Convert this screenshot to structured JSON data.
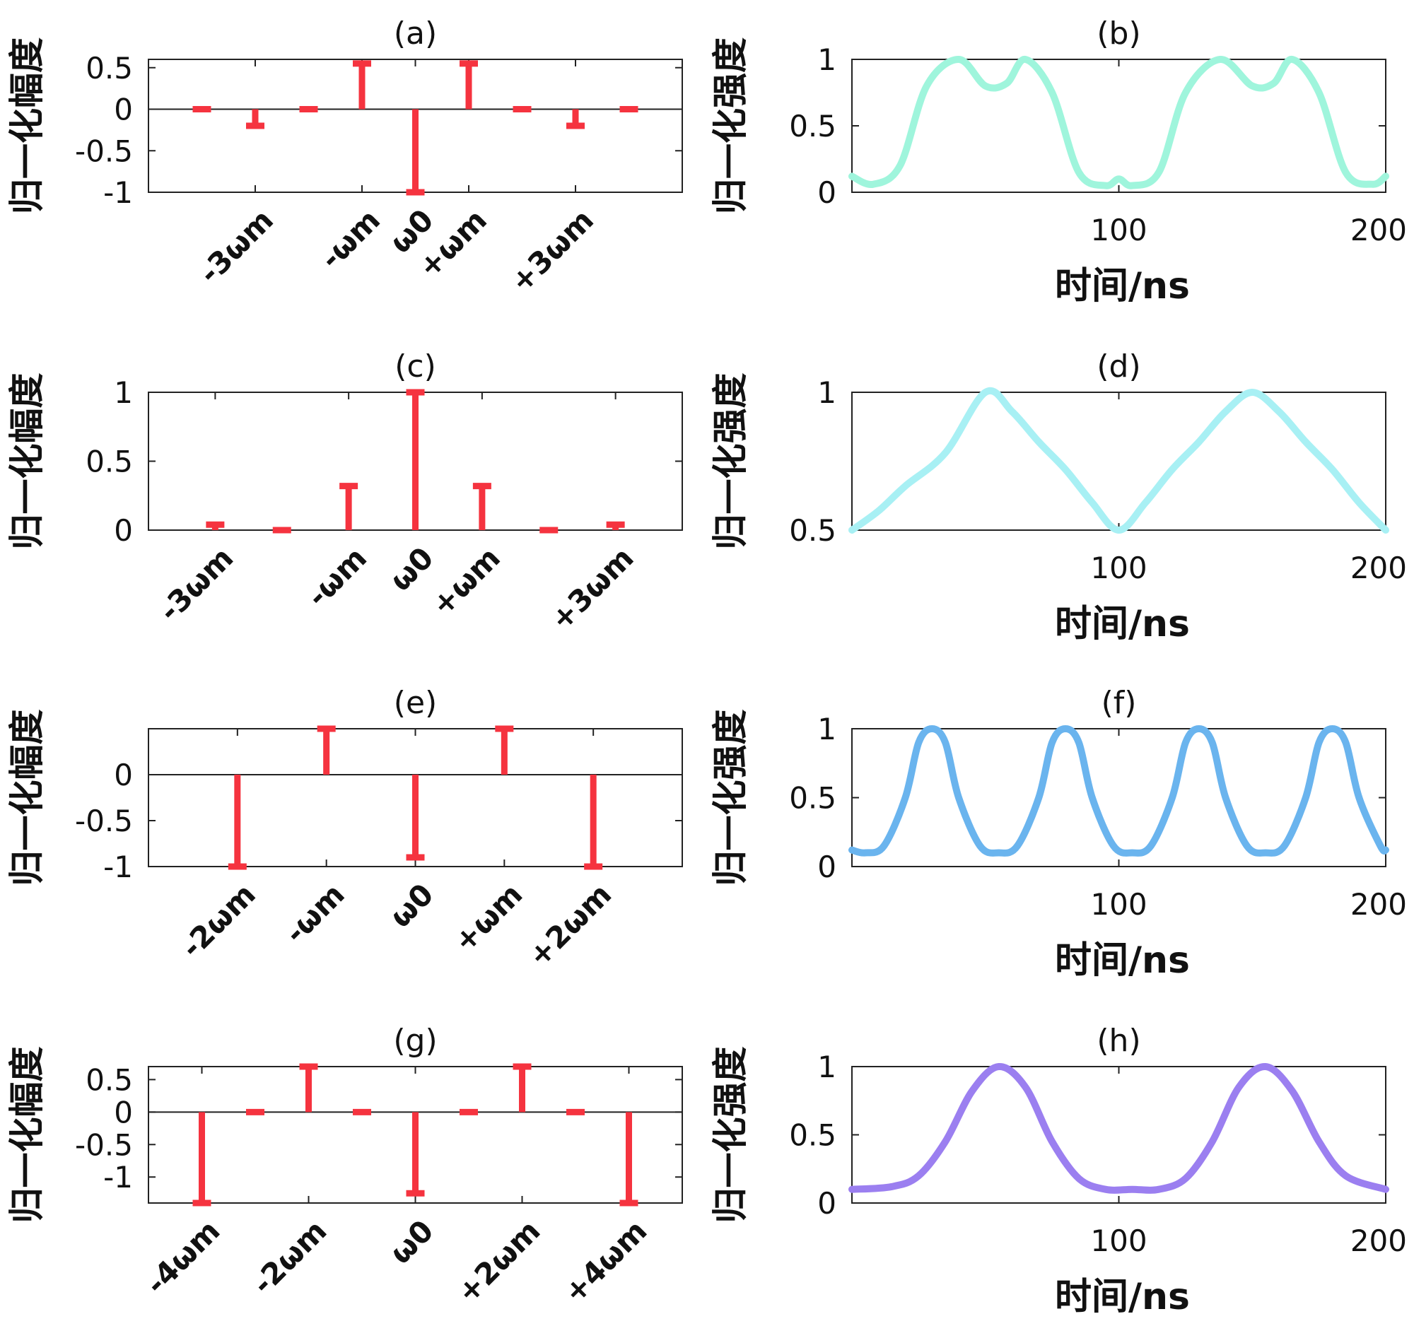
{
  "chart_data": [
    {
      "id": "a",
      "type": "stem",
      "title": "(a)",
      "ylabel": "归一化幅度",
      "xlabel": "",
      "ylim": [
        -1,
        0.6
      ],
      "xlim": [
        0,
        10
      ],
      "yticks": [
        0.5,
        0,
        -0.5,
        -1
      ],
      "ytick_labels": [
        "0.5",
        "0",
        "-0.5",
        "-1"
      ],
      "points": [
        {
          "x": 1,
          "y": 0.0
        },
        {
          "x": 2,
          "y": -0.2
        },
        {
          "x": 3,
          "y": 0.0
        },
        {
          "x": 4,
          "y": 0.55
        },
        {
          "x": 5,
          "y": -1.0
        },
        {
          "x": 6,
          "y": 0.55
        },
        {
          "x": 7,
          "y": 0.0
        },
        {
          "x": 8,
          "y": -0.2
        },
        {
          "x": 9,
          "y": 0.0
        }
      ],
      "xtick_marks": [
        2,
        4,
        5,
        6,
        8
      ],
      "category_labels": [
        {
          "x": 2,
          "label": "-3ωm"
        },
        {
          "x": 4,
          "label": "-ωm"
        },
        {
          "x": 5,
          "label": "ω0"
        },
        {
          "x": 6,
          "label": "+ωm"
        },
        {
          "x": 8,
          "label": "+3ωm"
        }
      ]
    },
    {
      "id": "b",
      "type": "line",
      "title": "(b)",
      "ylabel": "归一化强度",
      "xlabel": "时间/ns",
      "xlim": [
        0,
        200
      ],
      "ylim": [
        0,
        1
      ],
      "yticks": [
        0,
        0.5,
        1
      ],
      "ytick_labels": [
        "0",
        "0.5",
        "1"
      ],
      "xticks": [
        100,
        200
      ],
      "xtick_labels": [
        "100",
        "200"
      ],
      "color": "#9ff5dc",
      "series": [
        {
          "name": "intensity",
          "x": [
            0,
            8,
            18,
            28,
            40,
            50,
            58,
            65,
            75,
            85,
            95,
            100,
            105,
            115,
            125,
            138,
            150,
            158,
            165,
            175,
            185,
            195,
            200
          ],
          "y": [
            0.12,
            0.06,
            0.2,
            0.8,
            1.0,
            0.8,
            0.82,
            1.0,
            0.75,
            0.15,
            0.05,
            0.1,
            0.05,
            0.15,
            0.75,
            1.0,
            0.8,
            0.82,
            1.0,
            0.75,
            0.15,
            0.06,
            0.12
          ]
        }
      ]
    },
    {
      "id": "c",
      "type": "stem",
      "title": "(c)",
      "ylabel": "归一化幅度",
      "xlabel": "",
      "ylim": [
        0,
        1
      ],
      "xlim": [
        0,
        8
      ],
      "yticks": [
        1,
        0.5,
        0
      ],
      "ytick_labels": [
        "1",
        "0.5",
        "0"
      ],
      "points": [
        {
          "x": 1,
          "y": 0.04
        },
        {
          "x": 2,
          "y": 0.0
        },
        {
          "x": 3,
          "y": 0.32
        },
        {
          "x": 4,
          "y": 1.0
        },
        {
          "x": 5,
          "y": 0.32
        },
        {
          "x": 6,
          "y": 0.0
        },
        {
          "x": 7,
          "y": 0.04
        }
      ],
      "xtick_marks": [
        1,
        3,
        4,
        5,
        7
      ],
      "category_labels": [
        {
          "x": 1,
          "label": "-3ωm"
        },
        {
          "x": 3,
          "label": "-ωm"
        },
        {
          "x": 4,
          "label": "ω0"
        },
        {
          "x": 5,
          "label": "+ωm"
        },
        {
          "x": 7,
          "label": "+3ωm"
        }
      ]
    },
    {
      "id": "d",
      "type": "line",
      "title": "(d)",
      "ylabel": "归一化强度",
      "xlabel": "时间/ns",
      "xlim": [
        0,
        200
      ],
      "ylim": [
        0.5,
        1
      ],
      "yticks": [
        0.5,
        1
      ],
      "ytick_labels": [
        "0.5",
        "1"
      ],
      "xticks": [
        100,
        200
      ],
      "xtick_labels": [
        "100",
        "200"
      ],
      "color": "#a8f0f4",
      "series": [
        {
          "name": "intensity",
          "x": [
            0,
            10,
            20,
            35,
            50,
            60,
            70,
            80,
            90,
            100,
            110,
            120,
            130,
            140,
            150,
            160,
            170,
            180,
            190,
            200
          ],
          "y": [
            0.5,
            0.57,
            0.66,
            0.78,
            1.0,
            0.93,
            0.82,
            0.72,
            0.6,
            0.5,
            0.6,
            0.72,
            0.82,
            0.93,
            1.0,
            0.93,
            0.82,
            0.72,
            0.6,
            0.5
          ]
        }
      ]
    },
    {
      "id": "e",
      "type": "stem",
      "title": "(e)",
      "ylabel": "归一化幅度",
      "xlabel": "",
      "ylim": [
        -1,
        0.5
      ],
      "xlim": [
        0,
        6
      ],
      "yticks": [
        0,
        -0.5,
        -1
      ],
      "ytick_labels": [
        "0",
        "-0.5",
        "-1"
      ],
      "points": [
        {
          "x": 1,
          "y": -1.0
        },
        {
          "x": 2,
          "y": 0.5
        },
        {
          "x": 3,
          "y": -0.9
        },
        {
          "x": 4,
          "y": 0.5
        },
        {
          "x": 5,
          "y": -1.0
        }
      ],
      "xtick_marks": [
        1,
        2,
        3,
        4,
        5
      ],
      "category_labels": [
        {
          "x": 1,
          "label": "-2ωm"
        },
        {
          "x": 2,
          "label": "-ωm"
        },
        {
          "x": 3,
          "label": "ω0"
        },
        {
          "x": 4,
          "label": "+ωm"
        },
        {
          "x": 5,
          "label": "+2ωm"
        }
      ]
    },
    {
      "id": "f",
      "type": "line",
      "title": "(f)",
      "ylabel": "归一化强度",
      "xlabel": "时间/ns",
      "xlim": [
        0,
        200
      ],
      "ylim": [
        0,
        1
      ],
      "yticks": [
        0,
        0.5,
        1
      ],
      "ytick_labels": [
        "0",
        "0.5",
        "1"
      ],
      "xticks": [
        100,
        200
      ],
      "xtick_labels": [
        "100",
        "200"
      ],
      "color": "#6ab4ee",
      "series": [
        {
          "name": "intensity",
          "x": [
            0,
            5,
            12,
            20,
            25,
            30,
            35,
            40,
            48,
            55,
            62,
            70,
            75,
            80,
            85,
            90,
            98,
            105,
            112,
            120,
            125,
            130,
            135,
            140,
            148,
            155,
            162,
            170,
            175,
            180,
            185,
            190,
            198,
            200
          ],
          "y": [
            0.12,
            0.1,
            0.15,
            0.5,
            0.9,
            1.0,
            0.9,
            0.5,
            0.15,
            0.1,
            0.15,
            0.5,
            0.9,
            1.0,
            0.9,
            0.5,
            0.15,
            0.1,
            0.15,
            0.5,
            0.9,
            1.0,
            0.9,
            0.5,
            0.15,
            0.1,
            0.15,
            0.5,
            0.9,
            1.0,
            0.9,
            0.5,
            0.15,
            0.12
          ]
        }
      ]
    },
    {
      "id": "g",
      "type": "stem",
      "title": "(g)",
      "ylabel": "归一化幅度",
      "xlabel": "",
      "ylim": [
        -1.4,
        0.7
      ],
      "xlim": [
        0,
        10
      ],
      "yticks": [
        0.5,
        0,
        -0.5,
        -1
      ],
      "ytick_labels": [
        "0.5",
        "0",
        "-0.5",
        "-1"
      ],
      "points": [
        {
          "x": 1,
          "y": -1.4
        },
        {
          "x": 2,
          "y": 0.0
        },
        {
          "x": 3,
          "y": 0.7
        },
        {
          "x": 4,
          "y": 0.0
        },
        {
          "x": 5,
          "y": -1.25
        },
        {
          "x": 6,
          "y": 0.0
        },
        {
          "x": 7,
          "y": 0.7
        },
        {
          "x": 8,
          "y": 0.0
        },
        {
          "x": 9,
          "y": -1.4
        }
      ],
      "xtick_marks": [
        1,
        3,
        5,
        7,
        9
      ],
      "category_labels": [
        {
          "x": 1,
          "label": "-4ωm"
        },
        {
          "x": 3,
          "label": "-2ωm"
        },
        {
          "x": 5,
          "label": "ω0"
        },
        {
          "x": 7,
          "label": "+2ωm"
        },
        {
          "x": 9,
          "label": "+4ωm"
        }
      ]
    },
    {
      "id": "h",
      "type": "line",
      "title": "(h)",
      "ylabel": "归一化强度",
      "xlabel": "时间/ns",
      "xlim": [
        0,
        200
      ],
      "ylim": [
        0,
        1
      ],
      "yticks": [
        0,
        0.5,
        1
      ],
      "ytick_labels": [
        "0",
        "0.5",
        "1"
      ],
      "xticks": [
        100,
        200
      ],
      "xtick_labels": [
        "100",
        "200"
      ],
      "color": "#9b7ff0",
      "series": [
        {
          "name": "intensity",
          "x": [
            0,
            15,
            25,
            35,
            45,
            55,
            65,
            75,
            85,
            95,
            105,
            115,
            125,
            135,
            145,
            155,
            165,
            175,
            185,
            200
          ],
          "y": [
            0.1,
            0.12,
            0.2,
            0.45,
            0.82,
            1.0,
            0.85,
            0.45,
            0.18,
            0.1,
            0.1,
            0.1,
            0.18,
            0.45,
            0.85,
            1.0,
            0.82,
            0.45,
            0.2,
            0.1
          ]
        }
      ]
    }
  ]
}
